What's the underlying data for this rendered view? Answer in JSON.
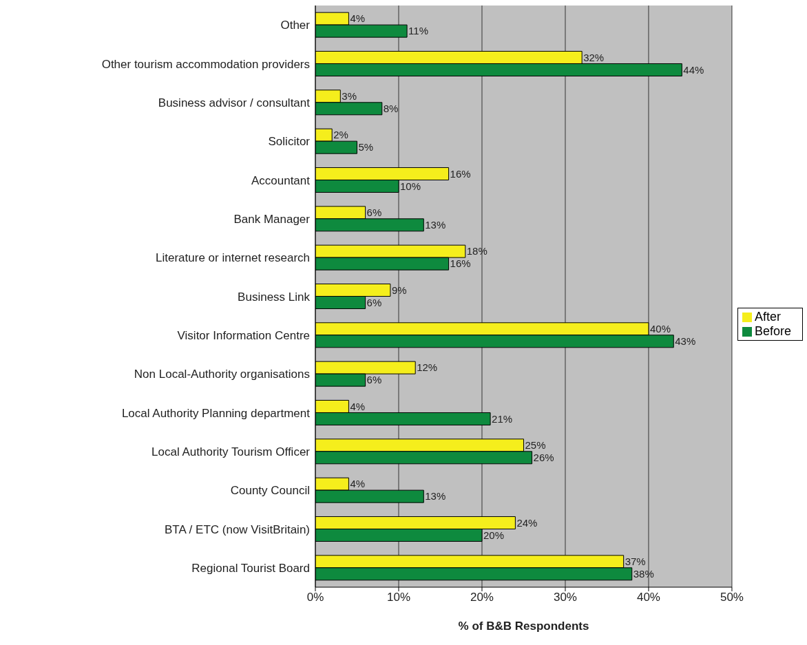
{
  "chart_data": {
    "type": "bar",
    "orientation": "horizontal",
    "xlabel": "% of B&B Respondents",
    "categories": [
      "Other",
      "Other tourism accommodation providers",
      "Business advisor / consultant",
      "Solicitor",
      "Accountant",
      "Bank Manager",
      "Literature or internet research",
      "Business Link",
      "Visitor Information Centre",
      "Non Local-Authority organisations",
      "Local Authority Planning department",
      "Local Authority Tourism Officer",
      "County Council",
      "BTA / ETC (now VisitBritain)",
      "Regional Tourist Board"
    ],
    "series": [
      {
        "name": "After",
        "color": "#f5ee1c",
        "values": [
          4,
          32,
          3,
          2,
          16,
          6,
          18,
          9,
          40,
          12,
          4,
          25,
          4,
          24,
          37
        ],
        "value_labels": [
          "4%",
          "32%",
          "3%",
          "2%",
          "16%",
          "6%",
          "18%",
          "9%",
          "40%",
          "12%",
          "4%",
          "25%",
          "4%",
          "24%",
          "37%"
        ]
      },
      {
        "name": "Before",
        "color": "#0e8a3e",
        "values": [
          11,
          44,
          8,
          5,
          10,
          13,
          16,
          6,
          43,
          6,
          21,
          26,
          13,
          20,
          38
        ],
        "value_labels": [
          "11%",
          "44%",
          "8%",
          "5%",
          "10%",
          "13%",
          "16%",
          "6%",
          "43%",
          "6%",
          "21%",
          "26%",
          "13%",
          "20%",
          "38%"
        ]
      }
    ],
    "xlim": [
      0,
      50
    ],
    "xticks": [
      {
        "value": 0,
        "label": "0%"
      },
      {
        "value": 10,
        "label": "10%"
      },
      {
        "value": 20,
        "label": "20%"
      },
      {
        "value": 30,
        "label": "30%"
      },
      {
        "value": 40,
        "label": "40%"
      },
      {
        "value": 50,
        "label": "50%"
      }
    ],
    "grid": "x",
    "legend": "right"
  }
}
